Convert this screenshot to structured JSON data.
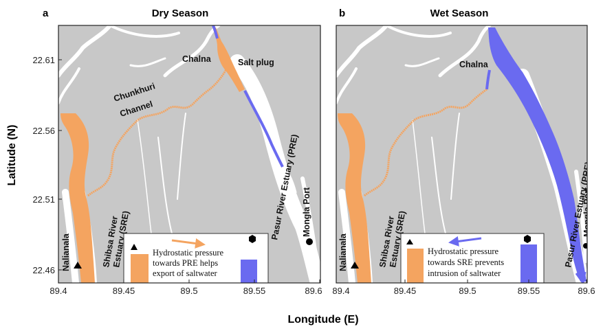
{
  "axes": {
    "xlabel": "Longitude (E)",
    "ylabel": "Latitude (N)",
    "panel_a_xticks": [
      "89.4",
      "89.45",
      "89.5",
      "89.55",
      "89.6"
    ],
    "panel_b_xticks": [
      "89.4",
      "89.45",
      "89.5",
      "89.55",
      "89.6"
    ],
    "yticks": [
      "22.61",
      "22.56",
      "22.51",
      "22.46"
    ]
  },
  "panel_a": {
    "letter": "a",
    "title": "Dry Season",
    "labels": {
      "chalna": "Chalna",
      "salt_plug": "Salt plug",
      "chunkhuri_1": "Chunkhuri",
      "chunkhuri_2": "Channel",
      "pre": "Pasur River Estuary (PRE)",
      "sre_1": "Shibsa River",
      "sre_2": "Estuary (SRE)",
      "nalianala": "Nalianala",
      "mongla": "Mongla Port"
    },
    "legend": {
      "line1": "Hydrostatic pressure",
      "line2": "towards PRE helps",
      "line3": "export of saltwater",
      "arrow_direction": "right",
      "triangle_symbol": "triangle-marker",
      "hexagon_symbol": "hexagon-marker"
    }
  },
  "panel_b": {
    "letter": "b",
    "title": "Wet Season",
    "labels": {
      "chalna": "Chalna",
      "pre": "Pasur River Estuary (PRE)",
      "sre_1": "Shibsa River",
      "sre_2": "Estuary (SRE)",
      "nalianala": "Nalianala",
      "mongla": "Mongla Port"
    },
    "legend": {
      "line1": "Hydrostatic pressure",
      "line2": "towards SRE prevents",
      "line3": "intrusion of saltwater",
      "arrow_direction": "left",
      "triangle_symbol": "triangle-marker",
      "hexagon_symbol": "hexagon-marker"
    }
  },
  "colors": {
    "land": "#c8c8c8",
    "water": "#ffffff",
    "salt_orange": "#f4a460",
    "fresh_blue": "#6a6af0",
    "frame": "#222222"
  }
}
